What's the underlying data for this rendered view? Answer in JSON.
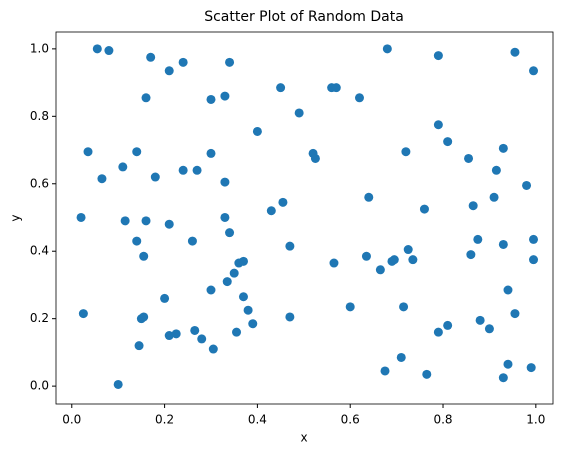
{
  "chart_data": {
    "type": "scatter",
    "title": "Scatter Plot of Random Data",
    "x_label": "x",
    "y_label": "y",
    "color": "#1f77b4",
    "xlim": [
      -0.034,
      1.037
    ],
    "ylim": [
      -0.053,
      1.05
    ],
    "xticks": [
      {
        "value": 0,
        "label": "0.0"
      },
      {
        "value": 0.2,
        "label": "0.2"
      },
      {
        "value": 0.4,
        "label": "0.4"
      },
      {
        "value": 0.6,
        "label": "0.6"
      },
      {
        "value": 0.8,
        "label": "0.8"
      },
      {
        "value": 1,
        "label": "1.0"
      }
    ],
    "yticks": [
      {
        "value": 0,
        "label": "0.0"
      },
      {
        "value": 0.2,
        "label": "0.2"
      },
      {
        "value": 0.4,
        "label": "0.4"
      },
      {
        "value": 0.6,
        "label": "0.6"
      },
      {
        "value": 0.8,
        "label": "0.8"
      },
      {
        "value": 1,
        "label": "1.0"
      }
    ],
    "x": [
      0.055,
      0.08,
      0.17,
      0.21,
      0.24,
      0.34,
      0.16,
      0.3,
      0.33,
      0.45,
      0.49,
      0.56,
      0.57,
      0.62,
      0.68,
      0.79,
      0.955,
      0.995,
      0.4,
      0.79,
      0.81,
      0.035,
      0.14,
      0.3,
      0.52,
      0.525,
      0.72,
      0.855,
      0.93,
      0.065,
      0.11,
      0.18,
      0.24,
      0.27,
      0.33,
      0.915,
      0.98,
      0.02,
      0.115,
      0.16,
      0.21,
      0.33,
      0.34,
      0.43,
      0.455,
      0.64,
      0.76,
      0.865,
      0.91,
      0.14,
      0.155,
      0.26,
      0.36,
      0.37,
      0.35,
      0.335,
      0.47,
      0.565,
      0.635,
      0.665,
      0.69,
      0.695,
      0.725,
      0.735,
      0.86,
      0.875,
      0.93,
      0.995,
      0.995,
      0.025,
      0.15,
      0.155,
      0.2,
      0.21,
      0.225,
      0.265,
      0.28,
      0.3,
      0.305,
      0.355,
      0.37,
      0.38,
      0.39,
      0.47,
      0.145,
      0.1,
      0.6,
      0.675,
      0.71,
      0.715,
      0.765,
      0.79,
      0.81,
      0.88,
      0.9,
      0.93,
      0.94,
      0.94,
      0.955,
      0.99
    ],
    "y": [
      1.0,
      0.995,
      0.975,
      0.935,
      0.96,
      0.96,
      0.855,
      0.85,
      0.86,
      0.885,
      0.81,
      0.885,
      0.885,
      0.855,
      1.0,
      0.98,
      0.99,
      0.935,
      0.755,
      0.775,
      0.725,
      0.695,
      0.695,
      0.69,
      0.69,
      0.675,
      0.695,
      0.675,
      0.705,
      0.615,
      0.65,
      0.62,
      0.64,
      0.64,
      0.605,
      0.64,
      0.595,
      0.5,
      0.49,
      0.49,
      0.48,
      0.5,
      0.455,
      0.52,
      0.545,
      0.56,
      0.525,
      0.535,
      0.56,
      0.43,
      0.385,
      0.43,
      0.365,
      0.37,
      0.335,
      0.31,
      0.415,
      0.365,
      0.385,
      0.345,
      0.37,
      0.375,
      0.405,
      0.375,
      0.39,
      0.435,
      0.42,
      0.435,
      0.375,
      0.215,
      0.2,
      0.205,
      0.26,
      0.15,
      0.155,
      0.165,
      0.14,
      0.285,
      0.11,
      0.16,
      0.265,
      0.225,
      0.185,
      0.205,
      0.12,
      0.005,
      0.235,
      0.045,
      0.085,
      0.235,
      0.035,
      0.16,
      0.18,
      0.195,
      0.17,
      0.025,
      0.065,
      0.285,
      0.215,
      0.055
    ]
  }
}
